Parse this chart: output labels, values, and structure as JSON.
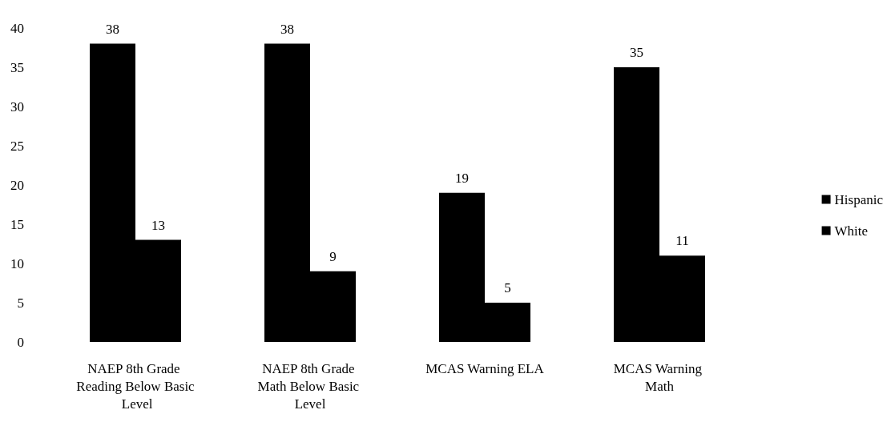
{
  "chart_data": {
    "type": "bar",
    "categories": [
      "NAEP 8th Grade Reading Below Basic Level",
      "NAEP 8th Grade Math Below Basic Level",
      "MCAS Warning ELA",
      "MCAS Warning Math"
    ],
    "series": [
      {
        "name": "Hispanic",
        "color": "#000000",
        "values": [
          38,
          38,
          19,
          35
        ]
      },
      {
        "name": "White",
        "color": "#000000",
        "values": [
          13,
          9,
          5,
          11
        ]
      }
    ],
    "ylim": [
      0,
      40
    ],
    "yticks": [
      0,
      5,
      10,
      15,
      20,
      25,
      30,
      35,
      40
    ],
    "grid": false,
    "legend": "right",
    "data_labels": true
  }
}
